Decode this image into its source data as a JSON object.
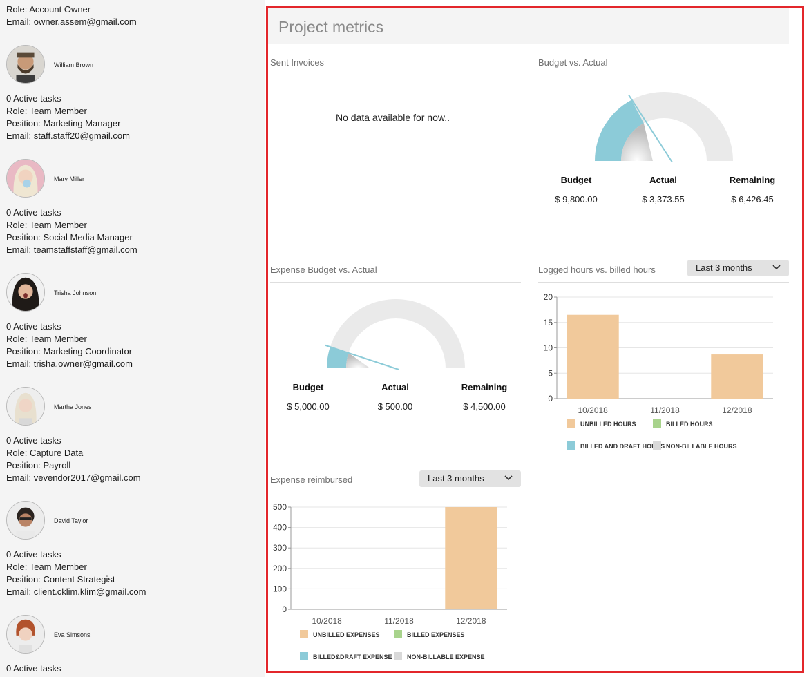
{
  "members": {
    "top_lines": [
      "Role: Account Owner",
      "Email: owner.assem@gmail.com"
    ],
    "items": [
      {
        "name": "William Brown",
        "tasks": "0 Active tasks",
        "role": "Role: Team Member",
        "position": "Position: Marketing Manager",
        "email": "Email: staff.staff20@gmail.com"
      },
      {
        "name": "Mary Miller",
        "tasks": "0 Active tasks",
        "role": "Role: Team Member",
        "position": "Position: Social Media Manager",
        "email": "Email: teamstaffstaff@gmail.com"
      },
      {
        "name": "Trisha Johnson",
        "tasks": "0 Active tasks",
        "role": "Role: Team Member",
        "position": "Position: Marketing Coordinator",
        "email": "Email: trisha.owner@gmail.com"
      },
      {
        "name": "Martha Jones",
        "tasks": "0 Active tasks",
        "role": "Role: Capture Data",
        "position": "Position: Payroll",
        "email": "Email: vevendor2017@gmail.com"
      },
      {
        "name": "David Taylor",
        "tasks": "0 Active tasks",
        "role": "Role: Team Member",
        "position": "Position: Content Strategist",
        "email": "Email: client.cklim.klim@gmail.com"
      },
      {
        "name": "Eva Simsons",
        "tasks": "0 Active tasks"
      }
    ]
  },
  "metrics": {
    "title": "Project metrics",
    "sent_invoices": {
      "title": "Sent Invoices",
      "empty_message": "No data available for now.."
    },
    "budget": {
      "title": "Budget vs. Actual",
      "labels": {
        "budget": "Budget",
        "actual": "Actual",
        "remaining": "Remaining"
      },
      "values": {
        "budget": "$ 9,800.00",
        "actual": "$ 3,373.55",
        "remaining": "$ 6,426.45"
      },
      "gauge_fraction": 0.344
    },
    "expense_budget": {
      "title": "Expense Budget vs. Actual",
      "labels": {
        "budget": "Budget",
        "actual": "Actual",
        "remaining": "Remaining"
      },
      "values": {
        "budget": "$ 5,000.00",
        "actual": "$ 500.00",
        "remaining": "$ 4,500.00"
      },
      "gauge_fraction": 0.1
    },
    "logged_hours": {
      "title": "Logged hours vs. billed hours",
      "dropdown": "Last 3 months"
    },
    "expense_reimbursed": {
      "title": "Expense reimbursed",
      "dropdown": "Last 3 months"
    }
  },
  "colors": {
    "unbilled": "#f1c99b",
    "billed": "#a8d38c",
    "billed_draft": "#8ccbd8",
    "non_billable": "#d9d9d9",
    "gauge_bg": "#eaeaea",
    "frame": "#e3262b"
  },
  "chart_data": [
    {
      "type": "bar",
      "title": "Logged hours vs. billed hours",
      "categories": [
        "10/2018",
        "11/2018",
        "12/2018"
      ],
      "series": [
        {
          "name": "UNBILLED HOURS",
          "values": [
            16.5,
            0,
            8.7
          ]
        },
        {
          "name": "BILLED HOURS",
          "values": [
            0,
            0,
            0
          ]
        },
        {
          "name": "BILLED AND DRAFT HOURS",
          "values": [
            0,
            0,
            0
          ]
        },
        {
          "name": "NON-BILLABLE HOURS",
          "values": [
            0,
            0,
            0
          ]
        }
      ],
      "yticks": [
        0,
        5,
        10,
        15,
        20
      ],
      "ylim": [
        0,
        20
      ],
      "grid": true,
      "legend": "bottom"
    },
    {
      "type": "bar",
      "title": "Expense reimbursed",
      "categories": [
        "10/2018",
        "11/2018",
        "12/2018"
      ],
      "series": [
        {
          "name": "UNBILLED EXPENSES",
          "values": [
            0,
            0,
            500
          ]
        },
        {
          "name": "BILLED EXPENSES",
          "values": [
            0,
            0,
            0
          ]
        },
        {
          "name": "BILLED&DRAFT EXPENSE",
          "values": [
            0,
            0,
            0
          ]
        },
        {
          "name": "NON-BILLABLE EXPENSE",
          "values": [
            0,
            0,
            0
          ]
        }
      ],
      "yticks": [
        0,
        100,
        200,
        300,
        400,
        500
      ],
      "ylim": [
        0,
        500
      ],
      "grid": true,
      "legend": "bottom"
    }
  ]
}
